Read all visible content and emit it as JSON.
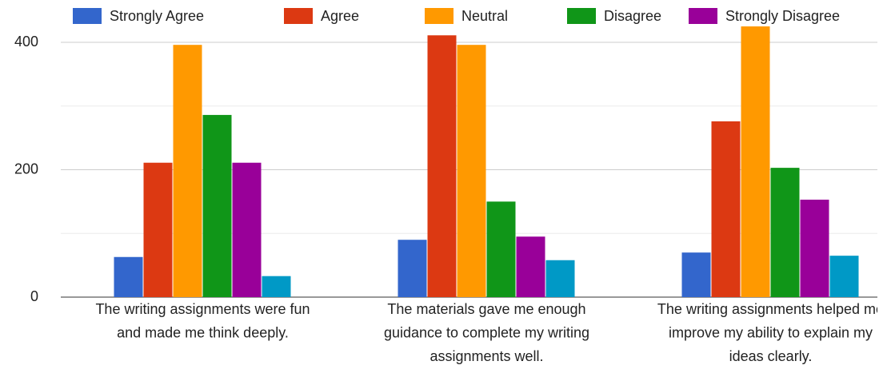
{
  "chart_data": {
    "type": "bar",
    "categories": [
      "The writing assignments were fun and made me think deeply.",
      "The materials gave me enough guidance to complete my writing assignments well.",
      "The writing assignments helped me improve my ability to explain my ideas clearly."
    ],
    "series": [
      {
        "name": "Strongly Agree",
        "color": "#3366cc",
        "values": [
          63,
          90,
          70
        ]
      },
      {
        "name": "Agree",
        "color": "#dc3912",
        "values": [
          211,
          411,
          276
        ]
      },
      {
        "name": "Neutral",
        "color": "#ff9900",
        "values": [
          396,
          396,
          425
        ]
      },
      {
        "name": "Disagree",
        "color": "#109618",
        "values": [
          286,
          150,
          203
        ]
      },
      {
        "name": "Strongly Disagree",
        "color": "#990099",
        "values": [
          211,
          95,
          153
        ]
      },
      {
        "color": "#0099c6",
        "values": [
          33,
          58,
          65
        ]
      }
    ],
    "ylim": [
      0,
      430
    ],
    "yticks": [
      0,
      200,
      400
    ],
    "yminor": [
      100,
      300
    ],
    "grid": true,
    "legend": "top"
  }
}
